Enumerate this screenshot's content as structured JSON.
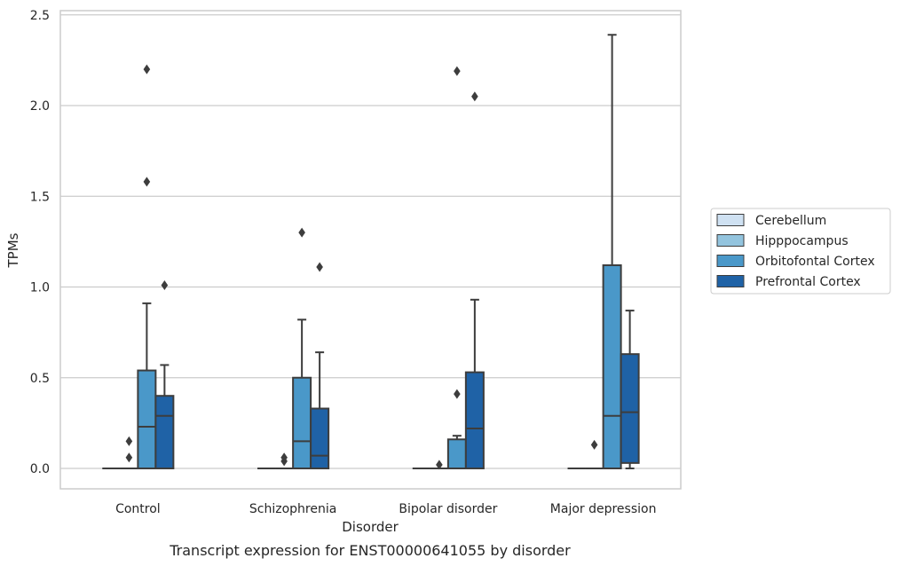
{
  "chart_data": {
    "type": "box",
    "title": "",
    "caption": "Transcript expression for ENST00000641055 by disorder",
    "xlabel": "Disorder",
    "ylabel": "TPMs",
    "ylim": [
      -0.11,
      2.51
    ],
    "yticks": [
      0.0,
      0.5,
      1.0,
      1.5,
      2.0,
      2.5
    ],
    "ytick_labels": [
      "0.0",
      "0.5",
      "1.0",
      "1.5",
      "2.0",
      "2.5"
    ],
    "grid": true,
    "legend_position": "right",
    "categories": [
      "Control",
      "Schizophrenia",
      "Bipolar disorder",
      "Major depression"
    ],
    "series": [
      {
        "name": "Cerebellum",
        "color": "#cfe1f2",
        "boxes": [
          {
            "q1": 0.0,
            "median": 0.0,
            "q3": 0.0,
            "whisker_low": 0.0,
            "whisker_high": 0.0,
            "outliers": []
          },
          {
            "q1": 0.0,
            "median": 0.0,
            "q3": 0.0,
            "whisker_low": 0.0,
            "whisker_high": 0.0,
            "outliers": []
          },
          {
            "q1": 0.0,
            "median": 0.0,
            "q3": 0.0,
            "whisker_low": 0.0,
            "whisker_high": 0.0,
            "outliers": []
          },
          {
            "q1": 0.0,
            "median": 0.0,
            "q3": 0.0,
            "whisker_low": 0.0,
            "whisker_high": 0.0,
            "outliers": []
          }
        ]
      },
      {
        "name": "Hipppocampus",
        "color": "#93c4de",
        "boxes": [
          {
            "q1": 0.0,
            "median": 0.0,
            "q3": 0.0,
            "whisker_low": 0.0,
            "whisker_high": 0.0,
            "outliers": [
              0.06,
              0.15
            ]
          },
          {
            "q1": 0.0,
            "median": 0.0,
            "q3": 0.0,
            "whisker_low": 0.0,
            "whisker_high": 0.0,
            "outliers": [
              0.04,
              0.06
            ]
          },
          {
            "q1": 0.0,
            "median": 0.0,
            "q3": 0.0,
            "whisker_low": 0.0,
            "whisker_high": 0.0,
            "outliers": [
              0.02
            ]
          },
          {
            "q1": 0.0,
            "median": 0.0,
            "q3": 0.0,
            "whisker_low": 0.0,
            "whisker_high": 0.0,
            "outliers": [
              0.13
            ]
          }
        ]
      },
      {
        "name": "Orbitofontal Cortex",
        "color": "#4a98c9",
        "boxes": [
          {
            "q1": 0.0,
            "median": 0.23,
            "q3": 0.54,
            "whisker_low": 0.0,
            "whisker_high": 0.91,
            "outliers": [
              1.58,
              2.2
            ]
          },
          {
            "q1": 0.0,
            "median": 0.15,
            "q3": 0.5,
            "whisker_low": 0.0,
            "whisker_high": 0.82,
            "outliers": [
              1.3
            ]
          },
          {
            "q1": 0.0,
            "median": 0.0,
            "q3": 0.16,
            "whisker_low": 0.0,
            "whisker_high": 0.18,
            "outliers": [
              0.41,
              2.19
            ]
          },
          {
            "q1": 0.0,
            "median": 0.29,
            "q3": 1.12,
            "whisker_low": 0.0,
            "whisker_high": 2.39,
            "outliers": []
          }
        ]
      },
      {
        "name": "Prefrontal Cortex",
        "color": "#1f62a6",
        "boxes": [
          {
            "q1": 0.0,
            "median": 0.29,
            "q3": 0.4,
            "whisker_low": 0.0,
            "whisker_high": 0.57,
            "outliers": [
              1.01
            ]
          },
          {
            "q1": 0.0,
            "median": 0.07,
            "q3": 0.33,
            "whisker_low": 0.0,
            "whisker_high": 0.64,
            "outliers": [
              1.11
            ]
          },
          {
            "q1": 0.0,
            "median": 0.22,
            "q3": 0.53,
            "whisker_low": 0.0,
            "whisker_high": 0.93,
            "outliers": [
              2.05
            ]
          },
          {
            "q1": 0.03,
            "median": 0.31,
            "q3": 0.63,
            "whisker_low": 0.0,
            "whisker_high": 0.87,
            "outliers": []
          }
        ]
      }
    ]
  }
}
